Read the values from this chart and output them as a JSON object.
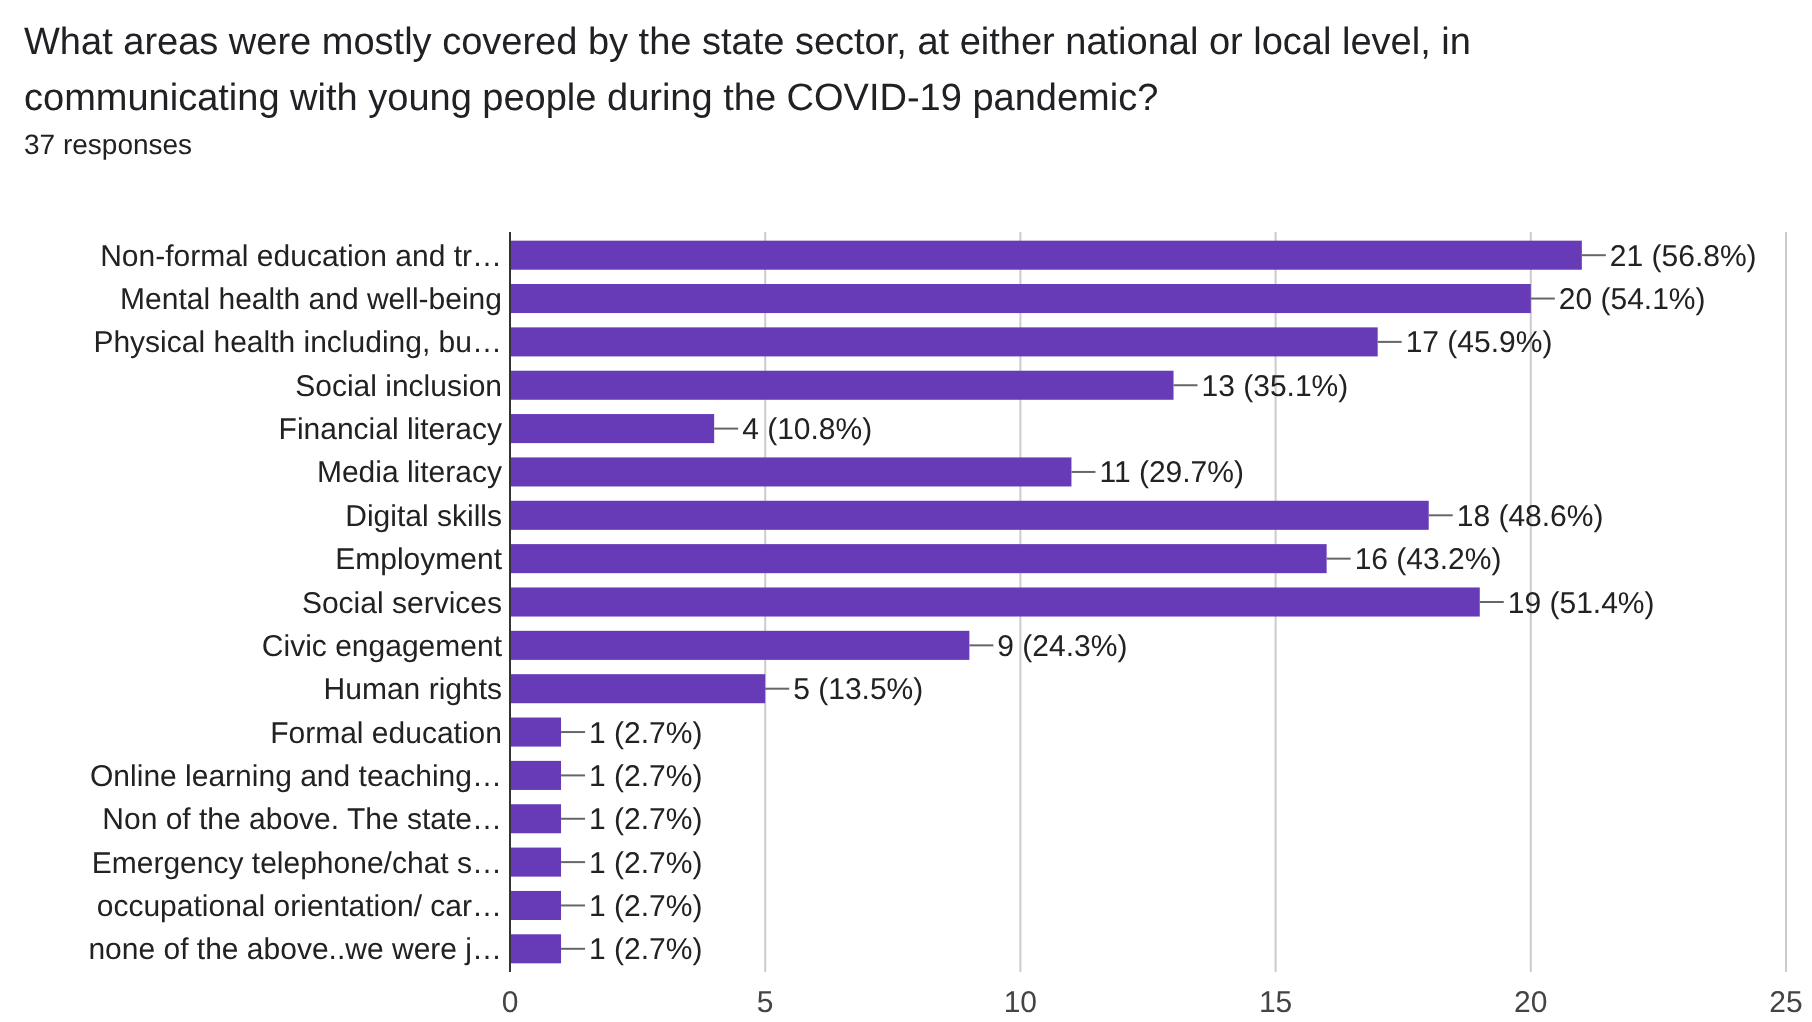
{
  "chart_data": {
    "type": "bar",
    "orientation": "horizontal",
    "title": "What areas were mostly covered by the state sector, at either national or local level, in communicating with young people during the COVID-19 pandemic?",
    "subtitle": "37 responses",
    "categories": [
      "Non-formal education and tr…",
      "Mental health and well-being",
      "Physical health including, bu…",
      "Social inclusion",
      "Financial literacy",
      "Media literacy",
      "Digital skills",
      "Employment",
      "Social services",
      "Civic engagement",
      "Human rights",
      "Formal education",
      "Online learning and teaching…",
      "Non of the above. The state…",
      "Emergency telephone/chat s…",
      "occupational orientation/ car…",
      "none of the above..we were j…"
    ],
    "values": [
      21,
      20,
      17,
      13,
      4,
      11,
      18,
      16,
      19,
      9,
      5,
      1,
      1,
      1,
      1,
      1,
      1
    ],
    "value_labels": [
      "21 (56.8%)",
      "20 (54.1%)",
      "17 (45.9%)",
      "13 (35.1%)",
      "4 (10.8%)",
      "11 (29.7%)",
      "18 (48.6%)",
      "16 (43.2%)",
      "19 (51.4%)",
      "9 (24.3%)",
      "5 (13.5%)",
      "1 (2.7%)",
      "1 (2.7%)",
      "1 (2.7%)",
      "1 (2.7%)",
      "1 (2.7%)",
      "1 (2.7%)"
    ],
    "color": "#673ab7",
    "xlim": [
      0,
      25
    ],
    "xticks": [
      0,
      5,
      10,
      15,
      20,
      25
    ],
    "grid": "x"
  }
}
